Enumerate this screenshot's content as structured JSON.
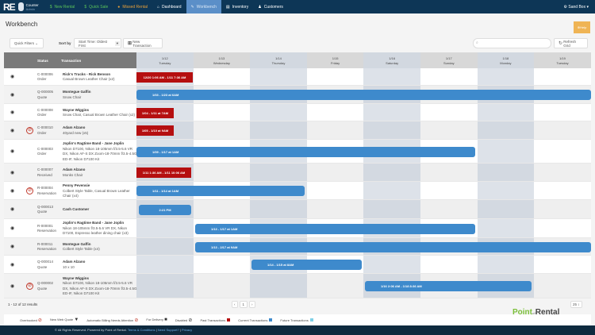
{
  "nav": {
    "logo": "RE",
    "user_name": "Counter",
    "user_role": "Admin",
    "items": [
      {
        "label": "New Rental",
        "icon": "$"
      },
      {
        "label": "Quick Sale",
        "icon": "$"
      },
      {
        "label": "Missed Rental",
        "icon": "●"
      },
      {
        "label": "Dashboard",
        "icon": "⌂"
      },
      {
        "label": "Workbench",
        "icon": "✎"
      },
      {
        "label": "Inventory",
        "icon": "▤"
      },
      {
        "label": "Customers",
        "icon": "♟"
      }
    ],
    "active": "Workbench",
    "sandbox": "Sand Box"
  },
  "page": {
    "title": "Workbench",
    "help": "Help"
  },
  "toolbar": {
    "quick_filters": "Quick Filters",
    "sort_label": "Sort by",
    "sort_value": "Start Time: Oldest First",
    "new_transaction": "New Transaction",
    "search_placeholder": "",
    "refresh": "Refresh Grid"
  },
  "grid": {
    "headers": {
      "status": "Status",
      "transaction": "Transaction"
    },
    "days": [
      {
        "date": "1/12",
        "day": "Tuesday"
      },
      {
        "date": "1/13",
        "day": "Wednesday"
      },
      {
        "date": "1/14",
        "day": "Thursday"
      },
      {
        "date": "1/15",
        "day": "Friday"
      },
      {
        "date": "1/16",
        "day": "Saturday"
      },
      {
        "date": "1/17",
        "day": "Sunday"
      },
      {
        "date": "1/18",
        "day": "Monday"
      },
      {
        "date": "1/19",
        "day": "Tuesday"
      }
    ],
    "rows": [
      {
        "id": "C-000006",
        "type": "Order",
        "name": "Rick's Trucks - Rick Benson",
        "items": "Casual Brown Leather Chair (x2)",
        "overbooked": false,
        "bar": "12/20 1:06 AM - 1/11 7:36 AM",
        "status": "past"
      },
      {
        "id": "Q-000005",
        "type": "Quote",
        "name": "Montegue Gaffin",
        "items": "Snow Chair",
        "overbooked": false,
        "bar": "1/03 - 1/23 at 6AM",
        "status": "current"
      },
      {
        "id": "C-000008",
        "type": "Order",
        "name": "Wayne Wiggins",
        "items": "Snow Chair, Casual Brown Leather Chair (x2)",
        "overbooked": false,
        "bar": "1/04 - 1/11 at 7AM",
        "status": "past"
      },
      {
        "id": "C-000010",
        "type": "Order",
        "name": "Adam Alzano",
        "items": "40yard new (x5)",
        "overbooked": true,
        "bar": "1/05 - 1/10 at 9AM",
        "status": "past"
      },
      {
        "id": "C-000003",
        "type": "Order",
        "name": "Joplin's Ragtime Band - Jane Joplin",
        "items": "Nikon D7100, Nikon 18-105mm f/3.5-5.6 VR DX, Nikon AF-S DX Zoom-18-70mm f/3.5-4.5G ED-IF, Nikon D7100 Kit",
        "overbooked": false,
        "bar": "1/09 - 1/17 at 1AM",
        "status": "current"
      },
      {
        "id": "C-000007",
        "type": "Received",
        "name": "Adam Alzano",
        "items": "Monks Chair",
        "overbooked": false,
        "bar": "1/11 1:36 AM - 1/11 10:06 AM",
        "status": "past"
      },
      {
        "id": "R-000004",
        "type": "Reservation",
        "name": "Penny Pevensie",
        "items": "Colbert Style Table, Casual Brown Leather Chair (x4)",
        "overbooked": true,
        "bar": "1/11 - 1/14 at 1AM",
        "status": "current"
      },
      {
        "id": "Q-000013",
        "type": "Quote",
        "name": "Cash Customer",
        "items": "",
        "overbooked": false,
        "bar": "2:21 PM",
        "status": "current"
      },
      {
        "id": "R-000001",
        "type": "Reservation",
        "name": "Joplin's Ragtime Band - Jane Joplin",
        "items": "Nikon 18-105mm f/3.5-5.6 VR DX, Nikon D7100, Espresso leather dining chair (x3)",
        "overbooked": false,
        "bar": "1/13 - 1/17 at 1AM",
        "status": "current"
      },
      {
        "id": "R-000011",
        "type": "Reservation",
        "name": "Montegue Gaffin",
        "items": "Colbert Style Table (x4)",
        "overbooked": false,
        "bar": "1/13 - 2/17 at 9AM",
        "status": "current"
      },
      {
        "id": "Q-000014",
        "type": "Quote",
        "name": "Adam Alzano",
        "items": "10 x 10",
        "overbooked": false,
        "bar": "1/14 - 1/15 at 8AM",
        "status": "current"
      },
      {
        "id": "Q-000002",
        "type": "Quote",
        "name": "Wayne Wiggins",
        "items": "Nikon D7100, Nikon 18-105mm f/3.5-5.6 VR DX, Nikon AF-S DX Zoom-18-70mm f/3.5-4.5G ED-IF, Nikon D7100 Kit",
        "overbooked": true,
        "bar": "1/16 2:06 AM - 1/18 8:36 AM",
        "status": "current"
      }
    ]
  },
  "pagination": {
    "results": "1 - 12 of 12 results",
    "page": "1",
    "per_page": "25"
  },
  "legend": [
    {
      "label": "Overbooked",
      "icon": "⊘",
      "color": "#c0392b"
    },
    {
      "label": "New Web Quote",
      "icon": "▼",
      "color": "#333"
    },
    {
      "label": "Automatic Billing Needs Attention",
      "icon": "⊘",
      "color": "#c0392b"
    },
    {
      "label": "For Delivery",
      "icon": "■",
      "color": "#333"
    },
    {
      "label": "Disabled",
      "icon": "⊘",
      "color": "#333"
    },
    {
      "label": "Past Transactions",
      "swatch": "#b50f10"
    },
    {
      "label": "Current Transactions",
      "swatch": "#3e8acc"
    },
    {
      "label": "Future Transactions",
      "swatch": "#7ed0e6"
    }
  ],
  "brand": {
    "logo_a": "Point",
    "logo_b": "Rental",
    "logo_of": "of"
  },
  "footer": {
    "copy": "© All Rights Reserved. Powered by Point of Rental.",
    "links": [
      "Terms & Conditions",
      "Need Support?",
      "Privacy"
    ]
  }
}
